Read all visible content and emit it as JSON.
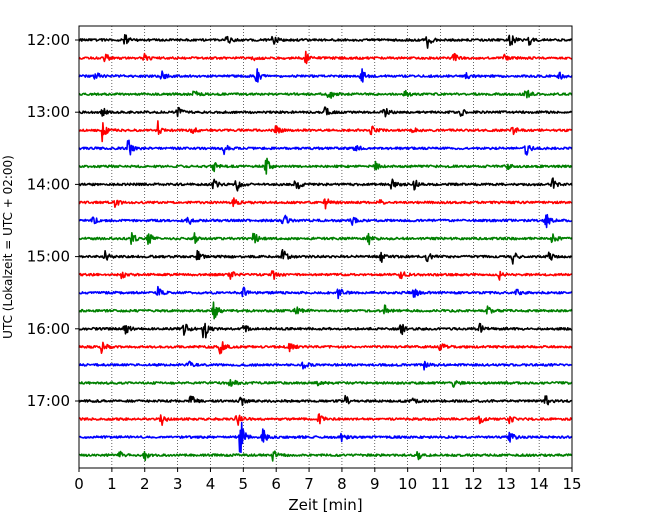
{
  "chart_data": {
    "type": "line",
    "subtype": "helicorder",
    "xlabel": "Zeit  [min]",
    "ylabel": "UTC (Lokalzeit = UTC + 02:00)",
    "xlim": [
      0,
      15
    ],
    "x_ticks": [
      0,
      1,
      2,
      3,
      4,
      5,
      6,
      7,
      8,
      9,
      10,
      11,
      12,
      13,
      14,
      15
    ],
    "x_tick_labels": [
      "0",
      "1",
      "2",
      "3",
      "4",
      "5",
      "6",
      "7",
      "8",
      "9",
      "10",
      "11",
      "12",
      "13",
      "14",
      "15"
    ],
    "y_tick_labels": [
      "12:00",
      "13:00",
      "14:00",
      "15:00",
      "16:00",
      "17:00"
    ],
    "trace_interval_minutes": 15,
    "trace_colors": [
      "#000000",
      "#ff0000",
      "#0000ff",
      "#008000"
    ],
    "grid": "vertical dotted lines at each minute",
    "traces": [
      {
        "time": "12:00",
        "color": "black",
        "events": [
          [
            1.4,
            1.0
          ],
          [
            4.5,
            0.8
          ],
          [
            5.9,
            1.1
          ],
          [
            10.6,
            1.2
          ],
          [
            13.1,
            1.4
          ],
          [
            13.7,
            0.9
          ]
        ]
      },
      {
        "time": "12:15",
        "color": "red",
        "events": [
          [
            0.8,
            0.7
          ],
          [
            2.0,
            0.8
          ],
          [
            5.3,
            0.6
          ],
          [
            6.9,
            0.8
          ],
          [
            11.4,
            0.7
          ],
          [
            12.9,
            0.6
          ]
        ]
      },
      {
        "time": "12:30",
        "color": "blue",
        "events": [
          [
            0.5,
            0.7
          ],
          [
            2.5,
            0.9
          ],
          [
            5.4,
            1.3
          ],
          [
            8.6,
            1.1
          ],
          [
            11.8,
            0.7
          ],
          [
            14.6,
            0.8
          ]
        ]
      },
      {
        "time": "12:45",
        "color": "green",
        "events": [
          [
            3.5,
            0.7
          ],
          [
            7.6,
            1.3
          ],
          [
            9.9,
            0.8
          ],
          [
            13.6,
            1.0
          ]
        ]
      },
      {
        "time": "13:00",
        "color": "black",
        "events": [
          [
            0.7,
            0.8
          ],
          [
            3.0,
            0.8
          ],
          [
            7.5,
            1.0
          ],
          [
            9.3,
            0.8
          ],
          [
            11.6,
            0.7
          ]
        ]
      },
      {
        "time": "13:15",
        "color": "red",
        "events": [
          [
            0.7,
            1.6
          ],
          [
            2.4,
            1.2
          ],
          [
            3.4,
            1.0
          ],
          [
            6.0,
            0.8
          ],
          [
            8.9,
            0.9
          ],
          [
            10.1,
            0.8
          ],
          [
            13.2,
            0.7
          ]
        ]
      },
      {
        "time": "13:30",
        "color": "blue",
        "events": [
          [
            1.5,
            1.8
          ],
          [
            4.4,
            1.0
          ],
          [
            8.4,
            0.8
          ],
          [
            13.6,
            1.1
          ]
        ]
      },
      {
        "time": "13:45",
        "color": "green",
        "events": [
          [
            4.1,
            0.8
          ],
          [
            5.7,
            1.3
          ],
          [
            9.0,
            0.7
          ],
          [
            13.0,
            0.6
          ]
        ]
      },
      {
        "time": "14:00",
        "color": "black",
        "events": [
          [
            4.1,
            1.0
          ],
          [
            4.8,
            1.2
          ],
          [
            6.6,
            1.2
          ],
          [
            9.5,
            0.9
          ],
          [
            10.2,
            0.9
          ],
          [
            14.4,
            1.1
          ]
        ]
      },
      {
        "time": "14:15",
        "color": "red",
        "events": [
          [
            1.1,
            0.8
          ],
          [
            4.7,
            0.9
          ],
          [
            7.5,
            0.8
          ],
          [
            9.1,
            0.7
          ]
        ]
      },
      {
        "time": "14:30",
        "color": "blue",
        "events": [
          [
            0.4,
            0.9
          ],
          [
            3.3,
            1.0
          ],
          [
            6.2,
            1.4
          ],
          [
            8.3,
            0.9
          ],
          [
            14.2,
            1.2
          ]
        ]
      },
      {
        "time": "14:45",
        "color": "green",
        "events": [
          [
            1.6,
            1.0
          ],
          [
            2.1,
            1.1
          ],
          [
            3.5,
            0.8
          ],
          [
            5.3,
            1.2
          ],
          [
            8.8,
            1.0
          ],
          [
            14.4,
            1.1
          ]
        ]
      },
      {
        "time": "15:00",
        "color": "black",
        "events": [
          [
            0.8,
            0.8
          ],
          [
            3.6,
            0.9
          ],
          [
            4.6,
            0.8
          ],
          [
            6.2,
            1.2
          ],
          [
            9.2,
            0.8
          ],
          [
            10.6,
            0.9
          ],
          [
            13.2,
            1.0
          ],
          [
            14.3,
            0.8
          ]
        ]
      },
      {
        "time": "15:15",
        "color": "red",
        "events": [
          [
            1.3,
            0.7
          ],
          [
            4.6,
            0.8
          ],
          [
            5.9,
            0.8
          ],
          [
            9.8,
            0.7
          ],
          [
            12.8,
            0.7
          ]
        ]
      },
      {
        "time": "15:30",
        "color": "blue",
        "events": [
          [
            2.4,
            0.9
          ],
          [
            5.0,
            0.8
          ],
          [
            7.9,
            0.9
          ],
          [
            10.2,
            0.8
          ],
          [
            13.3,
            0.7
          ]
        ]
      },
      {
        "time": "15:45",
        "color": "green",
        "events": [
          [
            4.1,
            1.8
          ],
          [
            6.6,
            1.0
          ],
          [
            9.3,
            0.8
          ],
          [
            12.4,
            1.0
          ]
        ]
      },
      {
        "time": "16:00",
        "color": "black",
        "events": [
          [
            1.4,
            1.2
          ],
          [
            3.2,
            1.2
          ],
          [
            3.8,
            2.4
          ],
          [
            5.0,
            1.0
          ],
          [
            9.8,
            1.0
          ],
          [
            12.2,
            0.8
          ]
        ]
      },
      {
        "time": "16:15",
        "color": "red",
        "events": [
          [
            0.7,
            1.0
          ],
          [
            4.3,
            1.3
          ],
          [
            6.4,
            0.9
          ],
          [
            11.0,
            0.8
          ]
        ]
      },
      {
        "time": "16:30",
        "color": "blue",
        "events": [
          [
            3.3,
            0.8
          ],
          [
            6.8,
            0.7
          ],
          [
            10.5,
            0.7
          ]
        ]
      },
      {
        "time": "16:45",
        "color": "green",
        "events": [
          [
            4.6,
            1.2
          ],
          [
            7.3,
            0.9
          ],
          [
            11.4,
            0.7
          ]
        ]
      },
      {
        "time": "17:00",
        "color": "black",
        "events": [
          [
            3.4,
            1.0
          ],
          [
            4.9,
            1.0
          ],
          [
            8.1,
            0.9
          ],
          [
            10.1,
            0.8
          ],
          [
            14.2,
            0.8
          ]
        ]
      },
      {
        "time": "17:15",
        "color": "red",
        "events": [
          [
            2.5,
            1.0
          ],
          [
            4.8,
            1.3
          ],
          [
            7.3,
            0.9
          ],
          [
            12.2,
            0.7
          ],
          [
            13.1,
            0.6
          ]
        ]
      },
      {
        "time": "17:30",
        "color": "blue",
        "events": [
          [
            4.9,
            3.5
          ],
          [
            5.6,
            1.2
          ],
          [
            8.0,
            0.8
          ],
          [
            13.1,
            1.0
          ]
        ]
      },
      {
        "time": "17:45",
        "color": "green",
        "events": [
          [
            1.2,
            0.8
          ],
          [
            2.0,
            0.7
          ],
          [
            5.9,
            0.8
          ],
          [
            10.3,
            0.7
          ]
        ]
      }
    ]
  }
}
